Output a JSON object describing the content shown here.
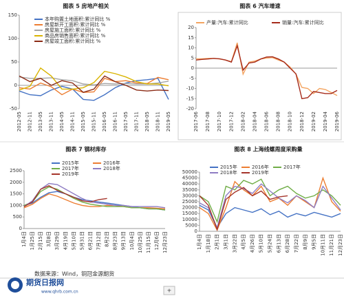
{
  "chart_data": [
    {
      "type": "line",
      "title": "图表 5 房地产相关",
      "categories": [
        "2012-05",
        "2012-11",
        "2013-05",
        "2013-11",
        "2014-05",
        "2014-11",
        "2015-05",
        "2015-11",
        "2016-05",
        "2016-11",
        "2017-05",
        "2017-11",
        "2018-05",
        "2018-11",
        "2019-05"
      ],
      "ylim": [
        -50,
        150
      ],
      "yticks": [
        -50,
        0,
        50,
        100,
        150
      ],
      "series": [
        {
          "name": "本年购置土地面积:累计同比 %",
          "color": "#4472c4",
          "values": [
            -12,
            -20,
            -22,
            -10,
            -2,
            -8,
            -30,
            -32,
            -20,
            -5,
            5,
            10,
            12,
            15,
            -30
          ]
        },
        {
          "name": "房屋新开工面积:累计同比 %",
          "color": "#ed7d31",
          "values": [
            -5,
            -8,
            5,
            -3,
            -20,
            -8,
            -15,
            -14,
            15,
            8,
            10,
            5,
            4,
            17,
            12
          ]
        },
        {
          "name": "房屋施工面积:累计同比 %",
          "color": "#a5a5a5",
          "values": [
            18,
            15,
            15,
            16,
            12,
            10,
            3,
            1,
            4,
            3,
            4,
            3,
            3,
            5,
            9
          ]
        },
        {
          "name": "商品房销售面积:累计同比 %",
          "color": "#d9b400",
          "values": [
            -10,
            -2,
            37,
            20,
            -8,
            -8,
            -5,
            6,
            30,
            25,
            18,
            8,
            3,
            3,
            -1
          ]
        },
        {
          "name": "房屋竣工面积:累计同比 %",
          "color": "#8b2a14",
          "values": [
            20,
            8,
            15,
            0,
            10,
            5,
            -15,
            -8,
            20,
            8,
            0,
            -10,
            -12,
            -10,
            -11
          ]
        }
      ]
    },
    {
      "type": "line",
      "title": "图表 6 汽车增速",
      "categories": [
        "2017-06",
        null,
        "2017-08",
        null,
        "2017-10",
        null,
        "2017-12",
        null,
        "2018-02",
        null,
        "2018-04",
        null,
        "2018-06",
        null,
        "2018-08",
        null,
        "2018-10",
        null,
        "2018-12",
        null,
        "2019-02",
        null,
        "2019-04",
        null,
        "2019-06"
      ],
      "ylim": [
        -20,
        20
      ],
      "yticks": [
        -20,
        -15,
        -10,
        -5,
        0,
        5,
        10,
        15,
        20
      ],
      "series": [
        {
          "name": "产量:汽车:累计同比",
          "color": "#f4a460",
          "values": [
            4.6,
            4.6,
            4.8,
            4.8,
            4.5,
            4.0,
            3.2,
            12.5,
            -3,
            3,
            3.5,
            4.5,
            5.0,
            5.2,
            4.0,
            3.0,
            0.5,
            -3,
            -9.5,
            -10,
            -12.5,
            -10,
            -10.5,
            -12,
            -13.5
          ]
        },
        {
          "name": "销量:汽车:累计同比",
          "color": "#a52a1a",
          "values": [
            4.0,
            4.3,
            4.5,
            4.8,
            4.6,
            4.0,
            3.0,
            11,
            -1,
            2.5,
            3,
            4.5,
            5.5,
            5.6,
            4.5,
            3,
            0,
            -2.8,
            -15,
            -14.5,
            -11.5,
            -12,
            -12.5,
            -12.5,
            -11
          ]
        }
      ]
    },
    {
      "type": "line",
      "title": "图表 7 钢材库存",
      "categories": [
        "1月4日",
        "1月25日",
        "2月15日",
        "3月8日",
        "3月29日",
        "4月19日",
        "5月10日",
        "5月31日",
        "6月21日",
        "7月12日",
        "8月2日",
        "8月23日",
        "9月13日",
        "10月4日",
        "10月25日",
        "11月15日",
        "12月6日",
        "12月23日"
      ],
      "ylim": [
        0,
        2500
      ],
      "yticks": [
        0,
        500,
        1000,
        1500,
        2000,
        2500
      ],
      "series": [
        {
          "name": "2015年",
          "color": "#4472c4",
          "values": [
            1000,
            1100,
            1350,
            1550,
            1600,
            1500,
            1350,
            1250,
            1200,
            1150,
            1100,
            1050,
            1000,
            950,
            900,
            850,
            850,
            800
          ]
        },
        {
          "name": "2016年",
          "color": "#ed7d31",
          "values": [
            900,
            1050,
            1300,
            1500,
            1400,
            1250,
            1100,
            1000,
            950,
            950,
            1000,
            1000,
            950,
            900,
            900,
            900,
            880,
            850
          ]
        },
        {
          "name": "2017年",
          "color": "#70ad47",
          "values": [
            1000,
            1150,
            1600,
            1800,
            1700,
            1500,
            1300,
            1150,
            1050,
            1000,
            950,
            950,
            950,
            900,
            900,
            850,
            850,
            800
          ]
        },
        {
          "name": "2018年",
          "color": "#8e7cc3",
          "values": [
            950,
            1200,
            1700,
            1950,
            1900,
            1700,
            1500,
            1300,
            1150,
            1100,
            1050,
            1000,
            1000,
            950,
            950,
            950,
            950,
            900
          ]
        },
        {
          "name": "2019年",
          "color": "#a5342a",
          "values": [
            950,
            1150,
            1700,
            1850,
            1650,
            1500,
            1350,
            1200,
            1150,
            1250,
            1300,
            null,
            null,
            null,
            null,
            null,
            null,
            null
          ]
        }
      ]
    },
    {
      "type": "line",
      "title": "图表 8 上海线螺周度采购量",
      "categories": [
        "1月4日",
        "1月18日",
        "2月1日",
        "3月1日",
        "3月22日",
        "4月5日",
        "4月26日",
        "5月10日",
        "5月24日",
        "6月13日",
        "6月28日",
        "7月22日",
        "8月9日",
        "9月5日",
        "10月11日",
        "11月21日",
        "12月23日"
      ],
      "ylim": [
        0,
        50000
      ],
      "yticks": [
        0,
        5000,
        10000,
        15000,
        20000,
        25000,
        30000,
        35000,
        40000,
        45000,
        50000
      ],
      "series": [
        {
          "name": "2015年",
          "color": "#4472c4",
          "values": [
            22000,
            18000,
            3000,
            15000,
            20000,
            18000,
            16000,
            19000,
            14000,
            17000,
            12000,
            15000,
            13000,
            16000,
            14000,
            12000,
            15000
          ]
        },
        {
          "name": "2016年",
          "color": "#ed7d31",
          "values": [
            20000,
            15000,
            1000,
            20000,
            42000,
            35000,
            30000,
            38000,
            25000,
            28000,
            22000,
            30000,
            25000,
            20000,
            45000,
            25000,
            17000
          ]
        },
        {
          "name": "2017年",
          "color": "#70ad47",
          "values": [
            30000,
            25000,
            8000,
            38000,
            35000,
            43000,
            40000,
            44000,
            30000,
            35000,
            38000,
            32000,
            28000,
            30000,
            35000,
            30000,
            22000
          ]
        },
        {
          "name": "2018年",
          "color": "#8e7cc3",
          "values": [
            24000,
            20000,
            3000,
            30000,
            38000,
            36000,
            32000,
            40000,
            34000,
            28000,
            24000,
            30000,
            26000,
            20000,
            38000,
            28000,
            18000
          ]
        },
        {
          "name": "2019年",
          "color": "#a5342a",
          "values": [
            30000,
            22000,
            1500,
            27000,
            33000,
            37000,
            30000,
            34000,
            27000,
            29000,
            30000,
            null,
            null,
            null,
            null,
            null,
            null
          ]
        }
      ]
    }
  ],
  "footer": {
    "logo": "期货日报网",
    "url": "www.qhrb.com.cn",
    "source": "数据来源：Wind，铜冠金源期货",
    "tab": "+"
  }
}
